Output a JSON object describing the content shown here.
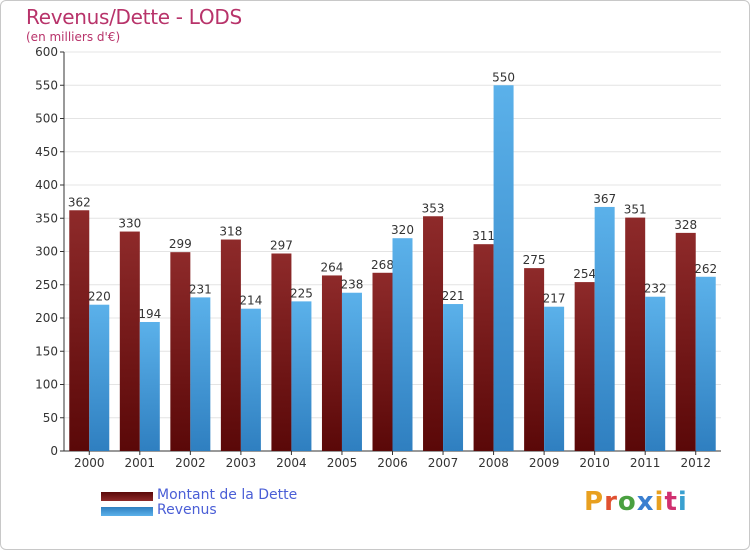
{
  "title": "Revenus/Dette - LODS",
  "subtitle": "(en milliers d'€)",
  "logo_text": "Proxiti",
  "colors": {
    "title": "#b8336a",
    "debt_bar": "#7a1a1a",
    "revenue_bar": "#4aa3e0",
    "legend_text": "#4a5ed6",
    "grid": "#ffffff",
    "plot_bg": "#ebebeb"
  },
  "chart_data": {
    "type": "bar",
    "title": "Revenus/Dette - LODS",
    "subtitle": "(en milliers d'€)",
    "xlabel": "",
    "ylabel": "",
    "ylim": [
      0,
      600
    ],
    "yticks": [
      0,
      50,
      100,
      150,
      200,
      250,
      300,
      350,
      400,
      450,
      500,
      550,
      600
    ],
    "grid": true,
    "legend_position": "bottom-left",
    "categories": [
      "2000",
      "2001",
      "2002",
      "2003",
      "2004",
      "2005",
      "2006",
      "2007",
      "2008",
      "2009",
      "2010",
      "2011",
      "2012"
    ],
    "series": [
      {
        "name": "Montant de la Dette",
        "color": "#7a1a1a",
        "values": [
          362,
          330,
          299,
          318,
          297,
          264,
          268,
          353,
          311,
          275,
          254,
          351,
          328
        ]
      },
      {
        "name": "Revenus",
        "color": "#4aa3e0",
        "values": [
          220,
          194,
          231,
          214,
          225,
          238,
          320,
          221,
          550,
          217,
          367,
          232,
          262
        ]
      }
    ]
  }
}
